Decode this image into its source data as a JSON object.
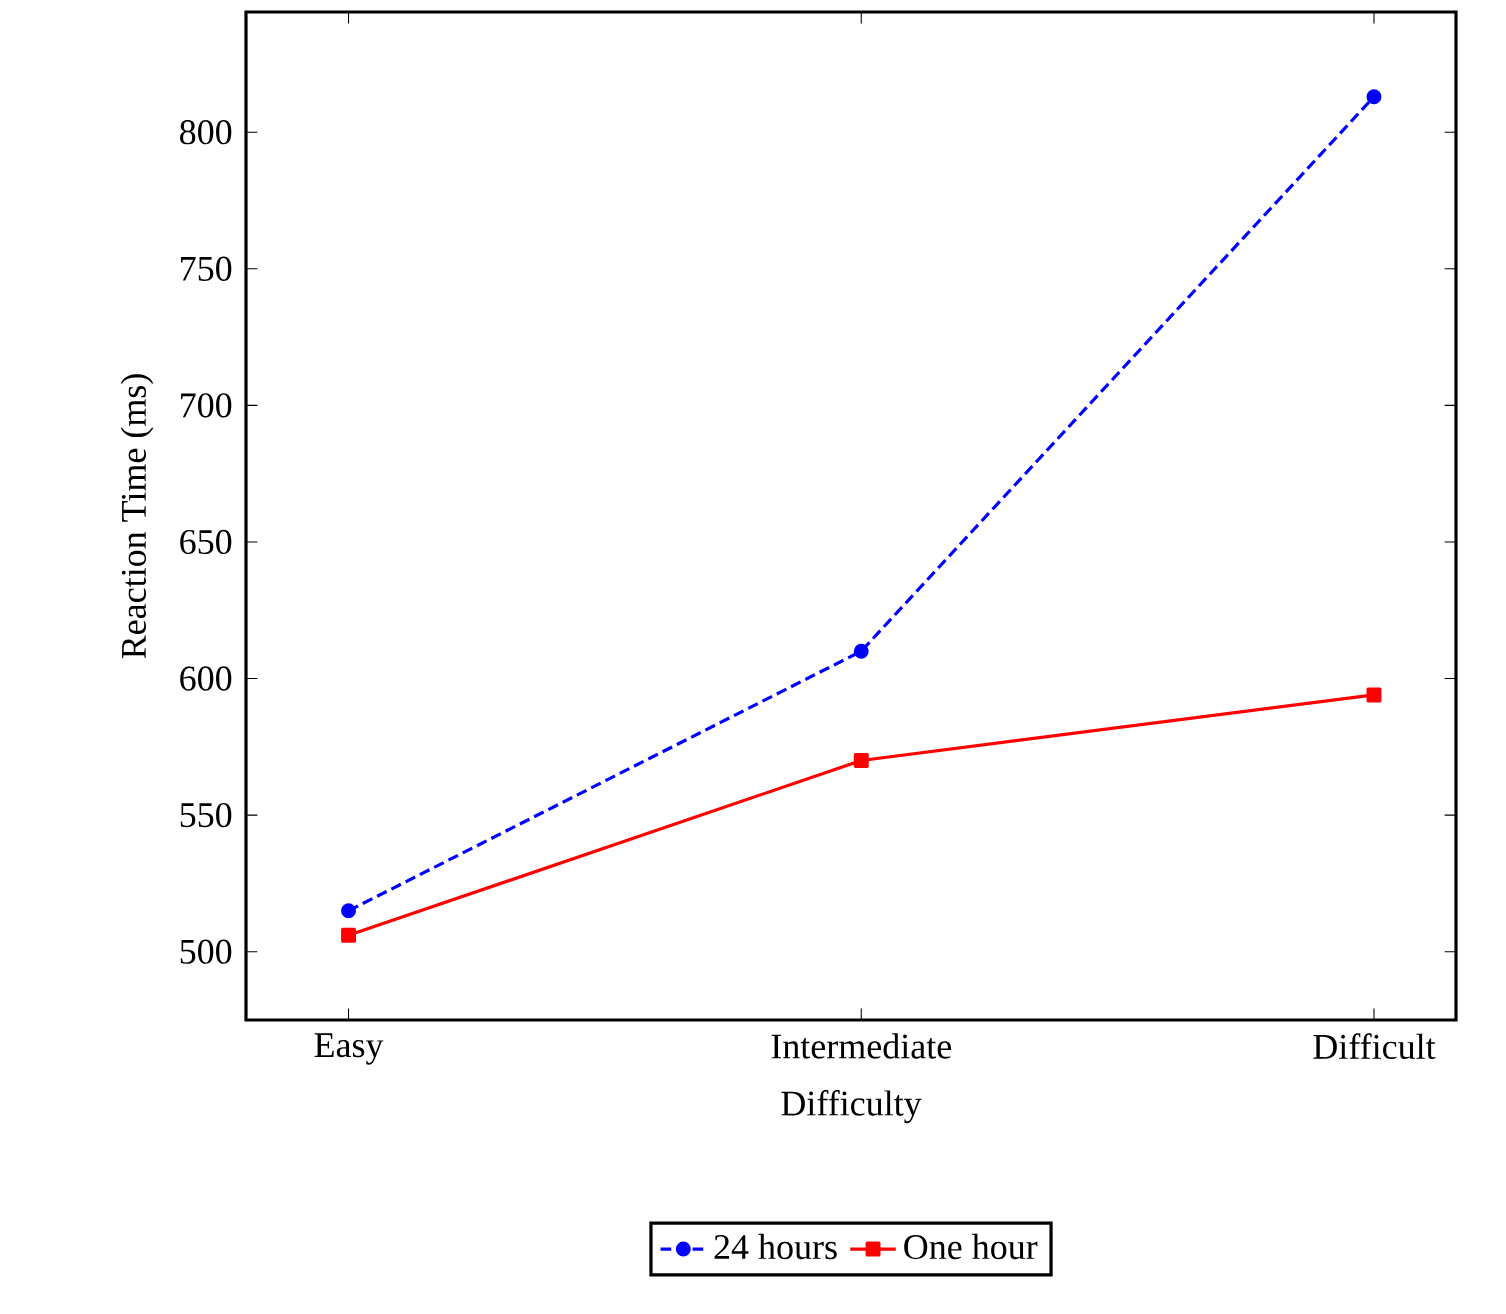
{
  "chart_data": {
    "type": "line",
    "xlabel": "Difficulty",
    "ylabel": "Reaction Time (ms)",
    "categories": [
      "Easy",
      "Intermediate",
      "Difficult"
    ],
    "series": [
      {
        "name": "24 hours",
        "color": "#0000ff",
        "values": [
          515,
          610,
          813
        ],
        "marker": "circle",
        "line_style": "dashed"
      },
      {
        "name": "One hour",
        "color": "#ff0000",
        "values": [
          506,
          570,
          594
        ],
        "marker": "square",
        "line_style": "solid"
      }
    ],
    "ylim": [
      475,
      844
    ],
    "yticks": [
      500,
      550,
      600,
      650,
      700,
      750,
      800
    ],
    "legend": "bottom",
    "grid": false
  }
}
